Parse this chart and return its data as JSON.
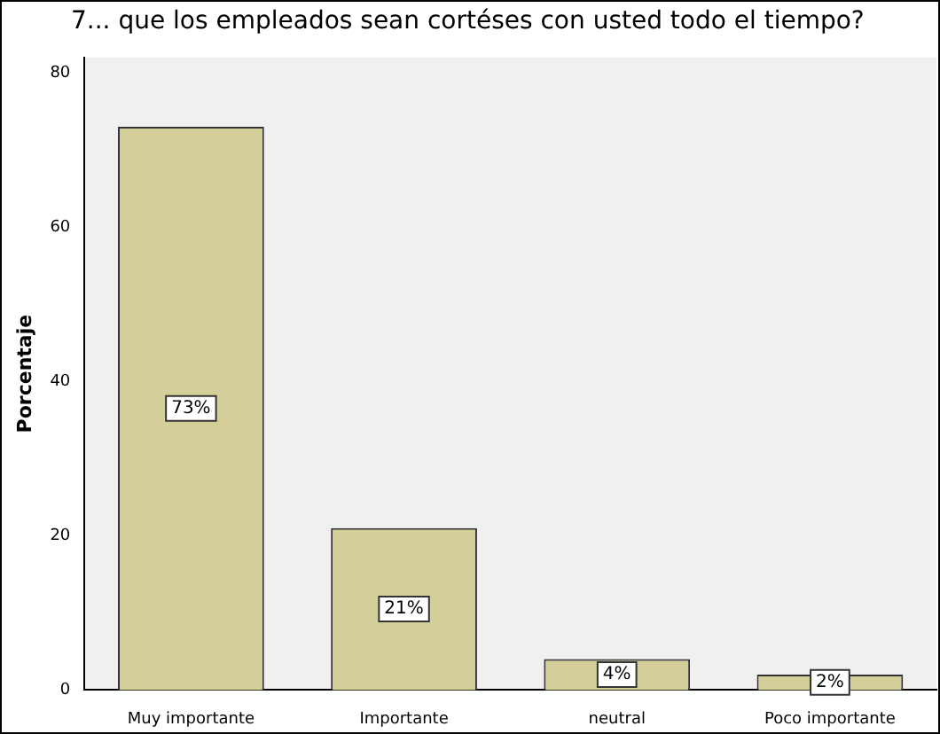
{
  "chart_data": {
    "type": "bar",
    "title": "7... que los empleados sean cortéses con usted todo el tiempo?",
    "ylabel": "Porcentaje",
    "categories": [
      "Muy importante",
      "Importante",
      "neutral",
      "Poco importante"
    ],
    "values": [
      73,
      21,
      4,
      2
    ],
    "value_labels": [
      "73%",
      "21%",
      "4%",
      "2%"
    ],
    "color": "#d4cf98",
    "ylim": [
      0,
      82
    ],
    "yticks": [
      0,
      20,
      40,
      60,
      80
    ],
    "grid": false,
    "legend": false
  }
}
